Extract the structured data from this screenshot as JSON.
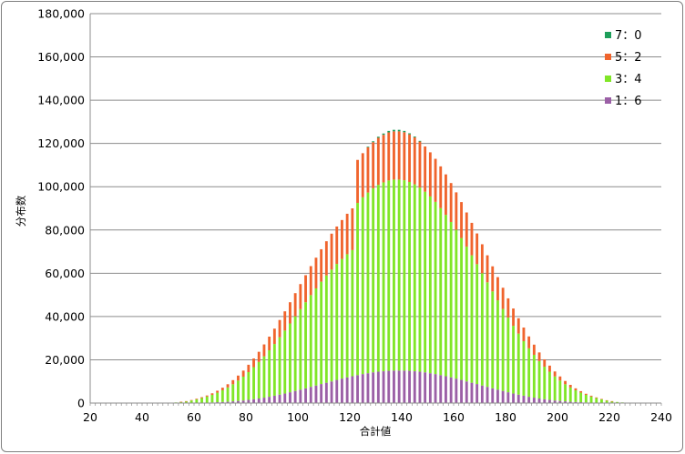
{
  "chart_data": {
    "type": "bar",
    "stacked": true,
    "xlabel": "合計値",
    "ylabel": "分布数",
    "xlim": [
      20,
      240
    ],
    "ylim": [
      0,
      180000
    ],
    "x_ticks": [
      "20",
      "40",
      "60",
      "80",
      "100",
      "120",
      "140",
      "160",
      "180",
      "200",
      "220",
      "240"
    ],
    "y_ticks": [
      "0",
      "20,000",
      "40,000",
      "60,000",
      "80,000",
      "100,000",
      "120,000",
      "140,000",
      "160,000",
      "180,000"
    ],
    "grid": true,
    "legend_position": "top-right",
    "x": [
      21,
      23,
      25,
      27,
      29,
      31,
      33,
      35,
      37,
      39,
      41,
      43,
      45,
      47,
      49,
      51,
      53,
      55,
      57,
      59,
      61,
      63,
      65,
      67,
      69,
      71,
      73,
      75,
      77,
      79,
      81,
      83,
      85,
      87,
      89,
      91,
      93,
      95,
      97,
      99,
      101,
      103,
      105,
      107,
      109,
      111,
      113,
      115,
      117,
      119,
      121,
      123,
      125,
      127,
      129,
      131,
      133,
      135,
      137,
      139,
      141,
      143,
      145,
      147,
      149,
      151,
      153,
      155,
      157,
      159,
      161,
      163,
      165,
      167,
      169,
      171,
      173,
      175,
      177,
      179,
      181,
      183,
      185,
      187,
      189,
      191,
      193,
      195,
      197,
      199,
      201,
      203,
      205,
      207,
      209,
      211,
      213,
      215,
      217,
      219,
      221,
      223,
      225,
      227,
      229,
      231,
      233,
      235,
      237,
      239
    ],
    "series": [
      {
        "name": "1：6",
        "color": "#9b5fa6",
        "values": [
          0,
          0,
          0,
          0,
          0,
          0,
          0,
          0,
          0,
          0,
          0,
          0,
          0,
          0,
          0,
          0,
          0,
          0,
          0,
          100,
          100,
          200,
          200,
          300,
          400,
          500,
          600,
          800,
          1000,
          1200,
          1500,
          1800,
          2100,
          2500,
          2900,
          3400,
          3900,
          4400,
          5000,
          5600,
          6200,
          6800,
          7500,
          8100,
          8800,
          9400,
          10000,
          10700,
          11300,
          11900,
          12400,
          12900,
          13400,
          13800,
          14200,
          14500,
          14700,
          14900,
          15000,
          15000,
          15000,
          14900,
          14700,
          14500,
          14200,
          13800,
          13400,
          12900,
          12400,
          11900,
          11300,
          10700,
          10000,
          9400,
          8800,
          8100,
          7500,
          6800,
          6200,
          5600,
          5000,
          4400,
          3900,
          3400,
          2900,
          2500,
          2100,
          1800,
          1500,
          1200,
          1000,
          800,
          600,
          500,
          400,
          300,
          200,
          200,
          100,
          100,
          0,
          0,
          0,
          0,
          0,
          0,
          0,
          0,
          0,
          0
        ]
      },
      {
        "name": "3：4",
        "color": "#80e627",
        "values": [
          0,
          0,
          0,
          0,
          0,
          0,
          0,
          0,
          0,
          0,
          0,
          0,
          0,
          0,
          100,
          100,
          300,
          500,
          800,
          1100,
          1600,
          2100,
          2800,
          3500,
          4400,
          5400,
          6600,
          7900,
          9400,
          11000,
          12800,
          14800,
          16900,
          19100,
          21500,
          23900,
          26500,
          29100,
          31800,
          34500,
          37200,
          39800,
          42400,
          44900,
          47300,
          49600,
          51700,
          53600,
          55300,
          56900,
          58300,
          79600,
          81700,
          83500,
          85100,
          86400,
          87300,
          88000,
          88300,
          88300,
          88000,
          87300,
          86400,
          85100,
          83500,
          81700,
          79600,
          77200,
          74600,
          71800,
          68800,
          65600,
          62300,
          58900,
          55400,
          51900,
          48300,
          44800,
          41300,
          37900,
          34500,
          31300,
          28200,
          25200,
          22400,
          19800,
          17300,
          15000,
          13000,
          11100,
          9400,
          7900,
          6600,
          5400,
          4400,
          3500,
          2800,
          2100,
          1600,
          1100,
          800,
          500,
          300,
          100,
          100,
          0,
          0,
          0,
          0,
          0
        ]
      },
      {
        "name": "5：2",
        "color": "#f0642d",
        "values": [
          0,
          0,
          0,
          0,
          0,
          0,
          0,
          0,
          0,
          0,
          0,
          0,
          0,
          0,
          0,
          0,
          0,
          100,
          100,
          200,
          300,
          400,
          500,
          700,
          900,
          1200,
          1500,
          1900,
          2300,
          2800,
          3400,
          4000,
          4700,
          5500,
          6300,
          7100,
          8000,
          8900,
          9800,
          10700,
          11600,
          12500,
          13400,
          14200,
          15000,
          15800,
          16600,
          17300,
          18000,
          18700,
          19300,
          19900,
          20400,
          20900,
          21300,
          21700,
          22000,
          22200,
          22300,
          22300,
          22200,
          22000,
          21700,
          21300,
          20900,
          20400,
          19900,
          19300,
          18700,
          18000,
          17300,
          16600,
          15800,
          15000,
          14200,
          13400,
          12500,
          11600,
          10700,
          9800,
          8900,
          8000,
          7100,
          6300,
          5500,
          4700,
          4000,
          3400,
          2800,
          2300,
          1900,
          1500,
          1200,
          900,
          700,
          500,
          400,
          300,
          200,
          100,
          100,
          0,
          0,
          0,
          0,
          0,
          0,
          0,
          0,
          0
        ]
      },
      {
        "name": "7：0",
        "color": "#1e9e5a",
        "values": [
          0,
          0,
          0,
          0,
          0,
          0,
          0,
          0,
          0,
          0,
          0,
          0,
          0,
          0,
          0,
          0,
          0,
          0,
          0,
          0,
          0,
          0,
          0,
          0,
          0,
          0,
          0,
          0,
          0,
          0,
          0,
          0,
          0,
          0,
          0,
          0,
          0,
          0,
          0,
          0,
          0,
          0,
          0,
          0,
          0,
          0,
          0,
          0,
          0,
          0,
          0,
          0,
          0,
          300,
          400,
          500,
          600,
          700,
          700,
          700,
          600,
          500,
          400,
          300,
          0,
          0,
          0,
          0,
          0,
          0,
          0,
          0,
          0,
          0,
          0,
          0,
          0,
          0,
          0,
          0,
          0,
          0,
          0,
          0,
          0,
          0,
          0,
          0,
          0,
          0,
          0,
          0,
          0,
          0,
          0,
          0,
          0,
          0,
          0,
          0,
          0,
          0,
          0,
          0,
          0,
          0,
          0,
          0,
          0,
          0
        ]
      }
    ],
    "legend_order": [
      "7：0",
      "5：2",
      "3：4",
      "1：6"
    ]
  }
}
